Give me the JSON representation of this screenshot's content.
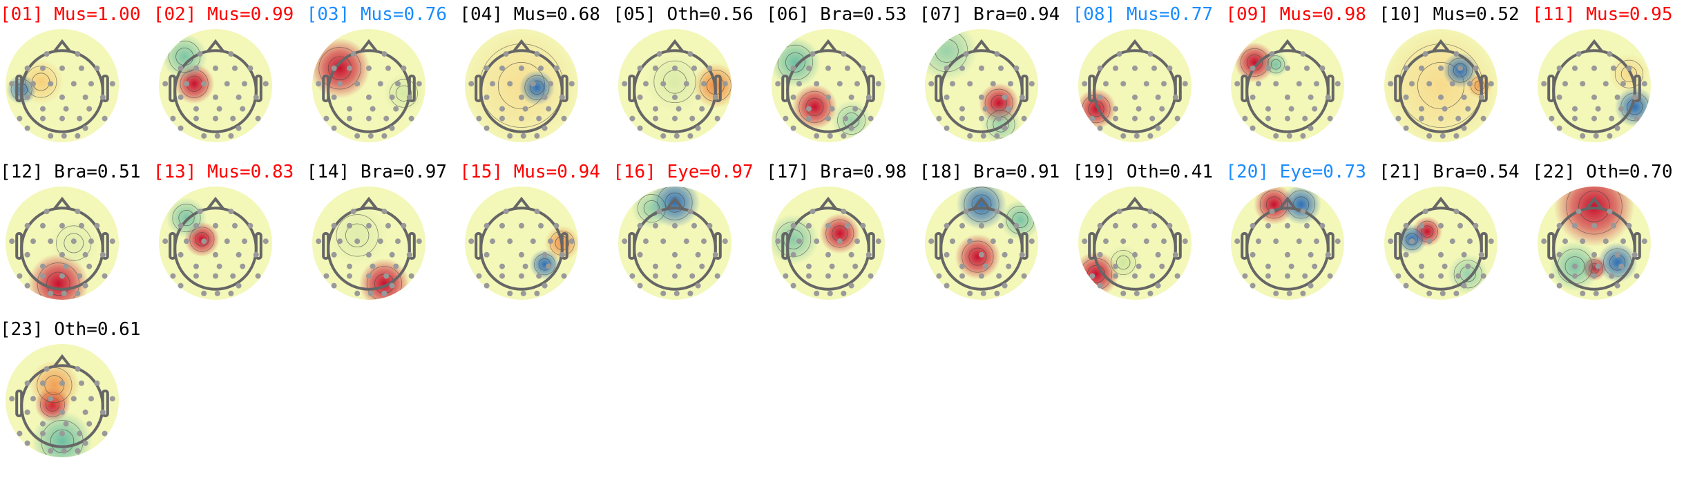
{
  "colors": {
    "red": "#ff0000",
    "blue": "#1a8cff",
    "black": "#000000"
  },
  "components": [
    {
      "title": "[01] Mus=1.00",
      "color": "red"
    },
    {
      "title": "[02] Mus=0.99",
      "color": "red"
    },
    {
      "title": "[03] Mus=0.76",
      "color": "blue"
    },
    {
      "title": "[04] Mus=0.68",
      "color": "black"
    },
    {
      "title": "[05] Oth=0.56",
      "color": "black"
    },
    {
      "title": "[06] Bra=0.53",
      "color": "black"
    },
    {
      "title": "[07] Bra=0.94",
      "color": "black"
    },
    {
      "title": "[08] Mus=0.77",
      "color": "blue"
    },
    {
      "title": "[09] Mus=0.98",
      "color": "red"
    },
    {
      "title": "[10] Mus=0.52",
      "color": "black"
    },
    {
      "title": "[11] Mus=0.95",
      "color": "red"
    },
    {
      "title": "[12] Bra=0.51",
      "color": "black"
    },
    {
      "title": "[13] Mus=0.83",
      "color": "red"
    },
    {
      "title": "[14] Bra=0.97",
      "color": "black"
    },
    {
      "title": "[15] Mus=0.94",
      "color": "red"
    },
    {
      "title": "[16] Eye=0.97",
      "color": "red"
    },
    {
      "title": "[17] Bra=0.98",
      "color": "black"
    },
    {
      "title": "[18] Bra=0.91",
      "color": "black"
    },
    {
      "title": "[19] Oth=0.41",
      "color": "black"
    },
    {
      "title": "[20] Eye=0.73",
      "color": "blue"
    },
    {
      "title": "[21] Bra=0.54",
      "color": "black"
    },
    {
      "title": "[22] Oth=0.70",
      "color": "black"
    },
    {
      "title": "[23] Oth=0.61",
      "color": "black"
    }
  ]
}
